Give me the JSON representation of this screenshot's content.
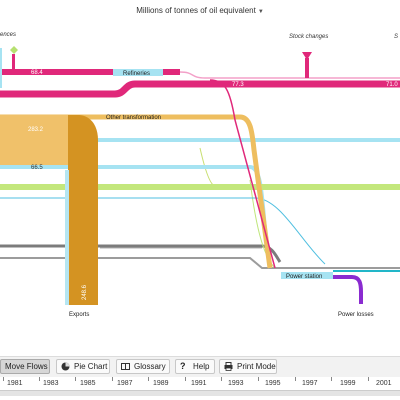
{
  "header": {
    "unit_label": "Millions of tonnes of oil equivalent"
  },
  "nodes": {
    "differences": "ences",
    "stock_changes": "Stock changes",
    "stock_changes_partial": "S",
    "refineries": "Refineries",
    "other_transformation": "Other transformation",
    "power_station": "Power station",
    "exports": "Exports",
    "power_losses": "Power losses"
  },
  "flow_values": {
    "v1": "68.4",
    "v2": "77.3",
    "v3": "71.0",
    "v4": "283.2",
    "v5": "66.5",
    "v6": "248.6"
  },
  "toolbar": {
    "move_flows": "Move Flows",
    "pie_chart": "Pie Chart",
    "glossary": "Glossary",
    "help": "Help",
    "print_mode": "Print Mode"
  },
  "timeline": {
    "years": [
      "1981",
      "1983",
      "1985",
      "1987",
      "1989",
      "1991",
      "1993",
      "1995",
      "1997",
      "1999",
      "2001"
    ]
  },
  "colors": {
    "oil": "#e8bf62",
    "exports": "#d4961f",
    "crude": "#e0287a",
    "cyan": "#9ee0ef",
    "lime": "#bfe67a",
    "grey": "#8a8a8a",
    "purple": "#8a2bd0",
    "teal": "#22b6c8"
  }
}
